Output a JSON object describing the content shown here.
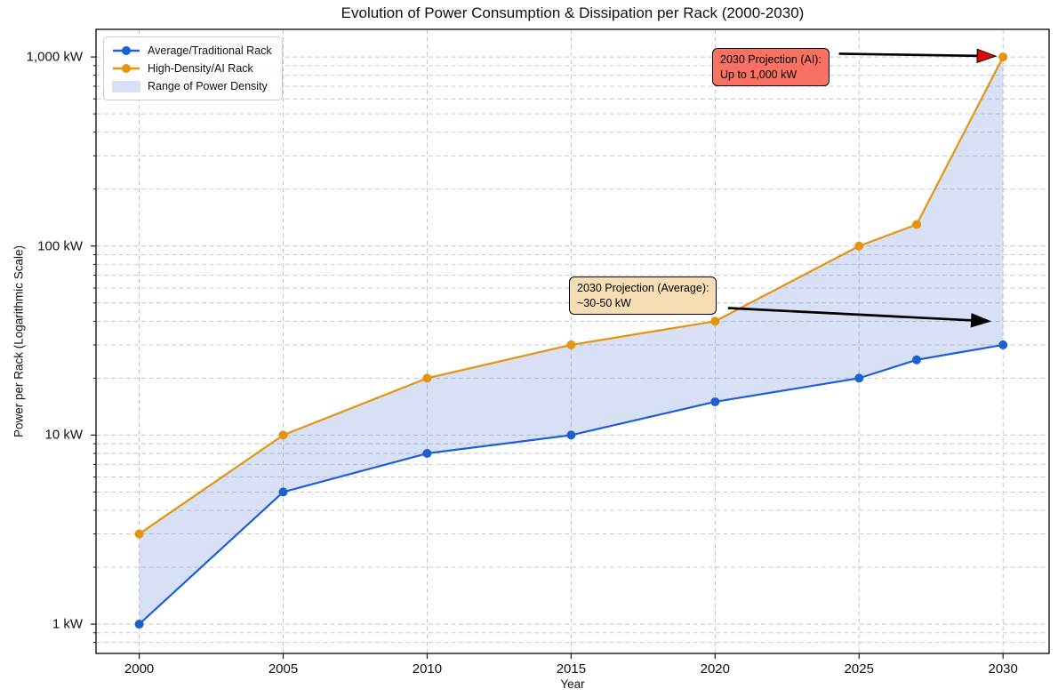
{
  "page": {
    "background": "#ffffff"
  },
  "chart_data": {
    "type": "line",
    "title": "Evolution of Power Consumption & Dissipation per Rack (2000-2030)",
    "xlabel": "Year",
    "ylabel": "Power per Rack (Logarithmic Scale)",
    "y_scale": "log",
    "grid": {
      "show": true,
      "style": "dashed",
      "color": "#c3c3c3"
    },
    "axis_color": "#1a1a1a",
    "xlim": [
      1998.5,
      2031.6
    ],
    "ylim": [
      0.7,
      1400
    ],
    "x": [
      2000,
      2005,
      2010,
      2015,
      2020,
      2025,
      2027,
      2030
    ],
    "series": [
      {
        "name": "Average/Traditional Rack",
        "color": "#1E5FD2",
        "marker": "circle",
        "values": [
          1,
          5,
          8,
          10,
          15,
          20,
          25,
          30
        ]
      },
      {
        "name": "High-Density/AI Rack",
        "color": "#E6940E",
        "marker": "circle",
        "values": [
          3,
          10,
          20,
          30,
          40,
          100,
          130,
          1000
        ]
      }
    ],
    "band": {
      "label": "Range of Power Density",
      "between": [
        "High-Density/AI Rack",
        "Average/Traditional Rack"
      ],
      "fill_color": "#82A0DC",
      "fill_opacity": 0.32
    },
    "x_ticks": [
      {
        "value": 2000,
        "label": "2000"
      },
      {
        "value": 2005,
        "label": "2005"
      },
      {
        "value": 2010,
        "label": "2010"
      },
      {
        "value": 2015,
        "label": "2015"
      },
      {
        "value": 2020,
        "label": "2020"
      },
      {
        "value": 2025,
        "label": "2025"
      },
      {
        "value": 2030,
        "label": "2030"
      }
    ],
    "y_ticks": [
      {
        "value": 1,
        "label": "1 kW"
      },
      {
        "value": 10,
        "label": "10 kW"
      },
      {
        "value": 100,
        "label": "100 kW"
      },
      {
        "value": 1000,
        "label": "1,000 kW"
      }
    ],
    "legend_position": "upper left",
    "annotations": [
      {
        "id": "ai",
        "line1": "2030 Projection (AI):",
        "line2": "Up to 1,000 kW",
        "box_color": "#F97162",
        "border_color": "#000000",
        "arrow": {
          "from": {
            "year": 2024.3,
            "kw": 1040
          },
          "to": {
            "year": 2029.75,
            "kw": 1010
          },
          "shaft_color": "#000000",
          "head_color": "#E10600"
        }
      },
      {
        "id": "average",
        "line1": "2030 Projection (Average):",
        "line2": "~30-50 kW",
        "box_color": "#F5DEB3",
        "border_color": "#000000",
        "arrow": {
          "from": {
            "year": 2020.45,
            "kw": 47
          },
          "to": {
            "year": 2029.55,
            "kw": 40
          },
          "shaft_color": "#000000",
          "head_color": "#000000"
        }
      }
    ]
  }
}
